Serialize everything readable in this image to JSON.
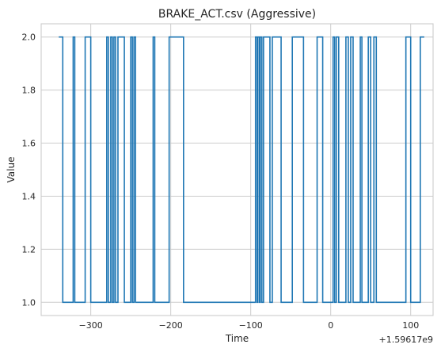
{
  "chart_data": {
    "type": "line",
    "title": "BRAKE_ACT.csv (Aggressive)",
    "xlabel": "Time",
    "ylabel": "Value",
    "x_offset_label": "+1.59617e9",
    "xlim": [
      -362,
      128
    ],
    "ylim": [
      0.95,
      2.05
    ],
    "xticks": [
      -300,
      -200,
      -100,
      0,
      100
    ],
    "xtick_labels": [
      "−300",
      "−200",
      "−100",
      "0",
      "100"
    ],
    "yticks": [
      1.0,
      1.2,
      1.4,
      1.6,
      1.8,
      2.0
    ],
    "ytick_labels": [
      "1.0",
      "1.2",
      "1.4",
      "1.6",
      "1.8",
      "2.0"
    ],
    "grid": true,
    "line_color": "#1f77b4",
    "series": [
      {
        "x": [
          -340,
          -335,
          -335,
          -322,
          -322,
          -320,
          -320,
          -307,
          -307,
          -300,
          -300,
          -280,
          -280,
          -278,
          -278,
          -275,
          -275,
          -273,
          -273,
          -271,
          -271,
          -269,
          -269,
          -266,
          -266,
          -258,
          -258,
          -250,
          -250,
          -248,
          -248,
          -246,
          -246,
          -244,
          -244,
          -222,
          -222,
          -220,
          -220,
          -202,
          -202,
          -184,
          -184,
          -94,
          -94,
          -92,
          -92,
          -91,
          -91,
          -89,
          -89,
          -88,
          -88,
          -86,
          -86,
          -84,
          -84,
          -76,
          -76,
          -73,
          -73,
          -62,
          -62,
          -48,
          -48,
          -34,
          -34,
          -17,
          -17,
          -10,
          -10,
          3,
          3,
          5,
          5,
          7,
          7,
          10,
          10,
          19,
          19,
          22,
          22,
          25,
          25,
          28,
          28,
          37,
          37,
          39,
          39,
          47,
          47,
          50,
          50,
          54,
          54,
          57,
          57,
          94,
          94,
          100,
          100,
          112,
          112,
          117
        ],
        "y": [
          2,
          2,
          1,
          1,
          2,
          2,
          1,
          1,
          2,
          2,
          1,
          1,
          2,
          2,
          1,
          1,
          2,
          2,
          1,
          1,
          2,
          2,
          1,
          1,
          2,
          2,
          1,
          1,
          2,
          2,
          1,
          1,
          2,
          2,
          1,
          1,
          2,
          2,
          1,
          1,
          2,
          2,
          1,
          1,
          2,
          2,
          1,
          1,
          2,
          2,
          1,
          1,
          2,
          2,
          1,
          1,
          2,
          2,
          1,
          1,
          2,
          2,
          1,
          1,
          2,
          2,
          1,
          1,
          2,
          2,
          1,
          1,
          2,
          2,
          1,
          1,
          2,
          2,
          1,
          1,
          2,
          2,
          1,
          1,
          2,
          2,
          1,
          1,
          2,
          2,
          1,
          1,
          2,
          2,
          1,
          1,
          2,
          2,
          1,
          1,
          2,
          2,
          1,
          1,
          2,
          2
        ]
      }
    ]
  }
}
